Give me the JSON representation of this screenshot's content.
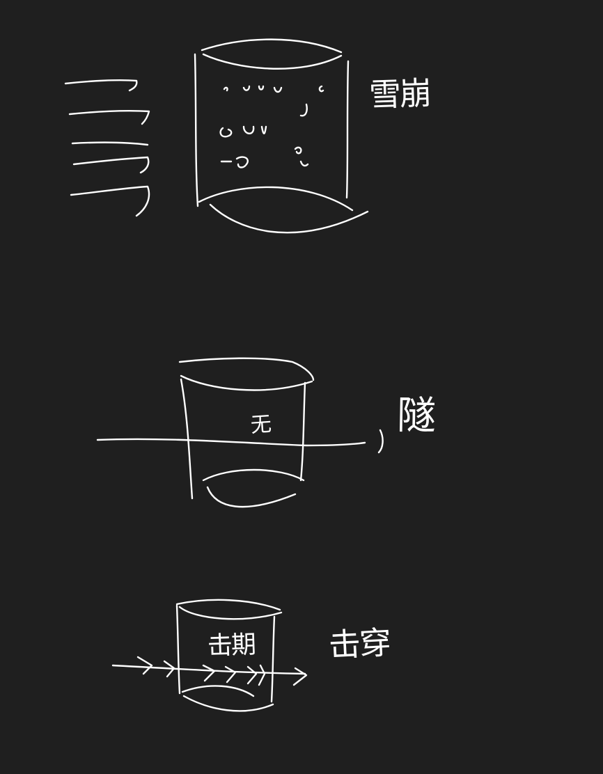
{
  "diagram": {
    "background": "#1f1f1f",
    "stroke_color": "#ffffff",
    "panels": [
      {
        "id": "avalanche",
        "label": "雪崩",
        "inner_label": "",
        "icon": "barrier-with-particles-and-incoming-waves"
      },
      {
        "id": "tunnel",
        "label": "隧",
        "inner_label": "无",
        "icon": "barrier-with-line-passing-through"
      },
      {
        "id": "penetrate",
        "label": "击穿",
        "inner_label": "击期",
        "icon": "barrier-with-arrows-passing-through"
      }
    ]
  }
}
